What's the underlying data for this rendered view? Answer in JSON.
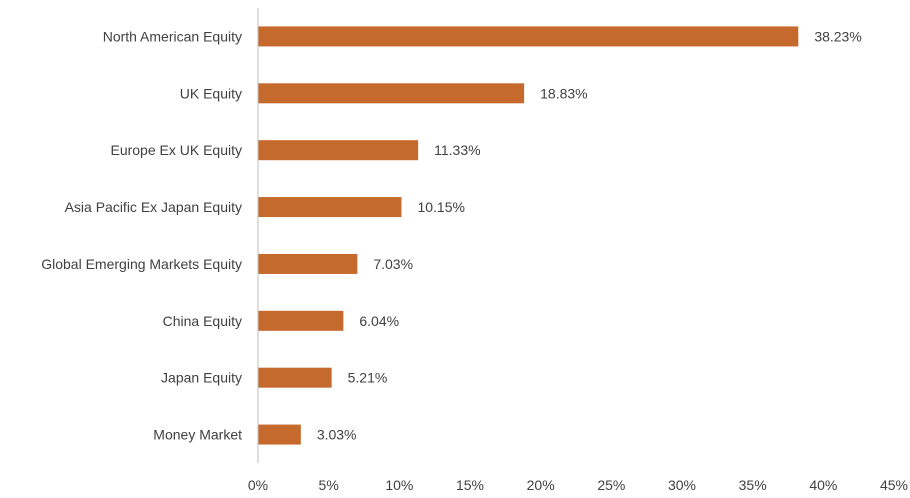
{
  "chart_data": {
    "type": "bar",
    "orientation": "horizontal",
    "title": "",
    "xlabel": "",
    "ylabel": "",
    "categories": [
      "North American Equity",
      "UK Equity",
      "Europe Ex UK Equity",
      "Asia Pacific Ex Japan Equity",
      "Global Emerging Markets Equity",
      "China Equity",
      "Japan Equity",
      "Money Market"
    ],
    "values": [
      38.23,
      18.83,
      11.33,
      10.15,
      7.03,
      6.04,
      5.21,
      3.03
    ],
    "value_labels": [
      "38.23%",
      "18.83%",
      "11.33%",
      "10.15%",
      "7.03%",
      "6.04%",
      "5.21%",
      "3.03%"
    ],
    "xlim": [
      0,
      45
    ],
    "x_ticks": [
      0,
      5,
      10,
      15,
      20,
      25,
      30,
      35,
      40,
      45
    ],
    "x_tick_labels": [
      "0%",
      "5%",
      "10%",
      "15%",
      "20%",
      "25%",
      "30%",
      "35%",
      "40%",
      "45%"
    ],
    "grid": false,
    "legend": "none",
    "colors": {
      "bar": "#C5692C",
      "axis": "#BFBFBF",
      "text": "#404040"
    }
  }
}
